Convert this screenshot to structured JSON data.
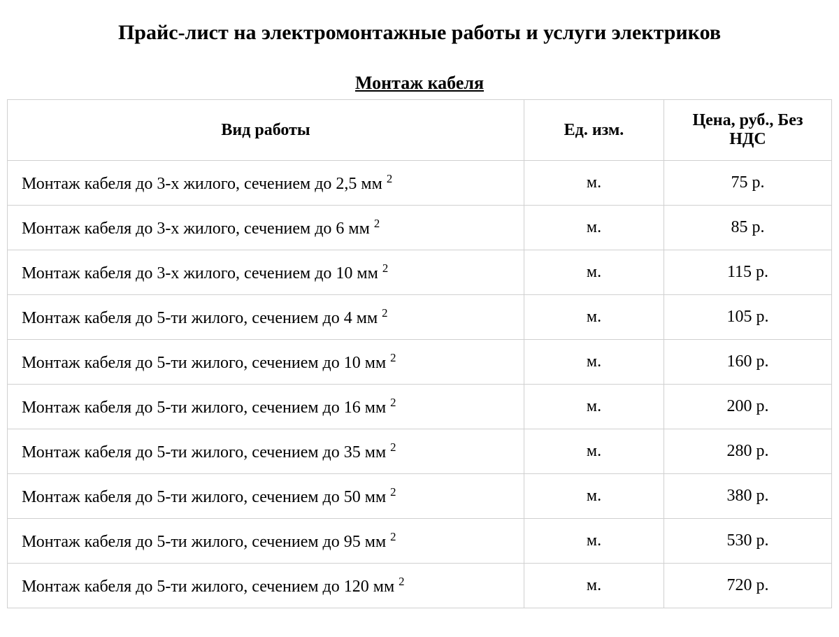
{
  "title": "Прайс-лист на электромонтажные работы и услуги электриков",
  "section": "Монтаж кабеля",
  "table": {
    "columns": [
      "Вид работы",
      "Ед. изм.",
      "Цена, руб., Без НДС"
    ],
    "rows": [
      {
        "work_prefix": "Монтаж кабеля до 3-х жилого, сечением до 2,5 мм",
        "work_sup": "2",
        "unit": "м.",
        "price": "75 р."
      },
      {
        "work_prefix": "Монтаж кабеля до 3-х жилого, сечением до 6 мм",
        "work_sup": "2",
        "unit": "м.",
        "price": "85 р."
      },
      {
        "work_prefix": "Монтаж кабеля до 3-х жилого, сечением до 10 мм",
        "work_sup": "2",
        "unit": "м.",
        "price": "115 р."
      },
      {
        "work_prefix": "Монтаж кабеля до 5-ти жилого, сечением до 4 мм",
        "work_sup": "2",
        "unit": "м.",
        "price": "105 р."
      },
      {
        "work_prefix": "Монтаж кабеля до 5-ти жилого, сечением до 10 мм",
        "work_sup": "2",
        "unit": "м.",
        "price": "160 р."
      },
      {
        "work_prefix": "Монтаж кабеля до 5-ти жилого, сечением до 16 мм",
        "work_sup": "2",
        "unit": "м.",
        "price": "200 р."
      },
      {
        "work_prefix": "Монтаж кабеля до 5-ти жилого, сечением до 35 мм",
        "work_sup": "2",
        "unit": "м.",
        "price": "280 р."
      },
      {
        "work_prefix": "Монтаж кабеля до 5-ти жилого, сечением до 50 мм",
        "work_sup": "2",
        "unit": "м.",
        "price": "380 р."
      },
      {
        "work_prefix": "Монтаж кабеля до 5-ти жилого, сечением до 95 мм",
        "work_sup": "2",
        "unit": "м.",
        "price": "530 р."
      },
      {
        "work_prefix": "Монтаж кабеля до 5-ти жилого, сечением до 120 мм",
        "work_sup": "2",
        "unit": "м.",
        "price": "720 р."
      }
    ],
    "column_widths": {
      "work": "auto",
      "unit": "200px",
      "price": "240px"
    },
    "border_color": "#d0d0d0",
    "background_color": "#ffffff",
    "text_color": "#000000",
    "title_fontsize": 30,
    "section_fontsize": 26,
    "body_fontsize": 24,
    "font_family": "Times New Roman"
  }
}
